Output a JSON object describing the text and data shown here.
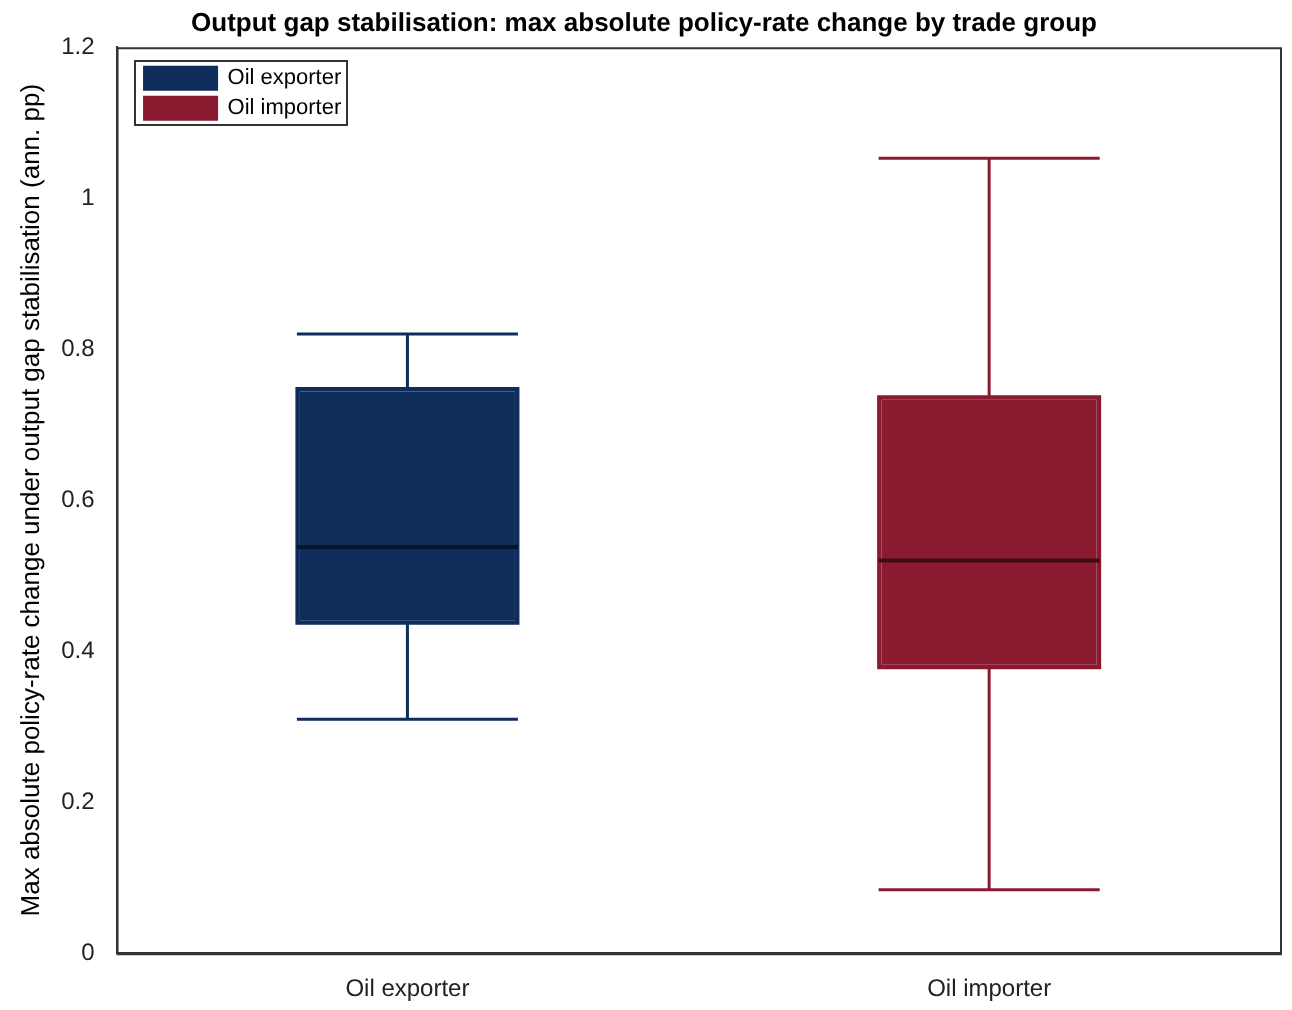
{
  "chart_data": {
    "type": "box",
    "title": "Output gap stabilisation: max absolute policy-rate change by trade group",
    "ylabel": "Max absolute policy-rate change under output gap stabilisation (ann. pp)",
    "categories": [
      "Oil exporter",
      "Oil importer"
    ],
    "series": [
      {
        "name": "Oil exporter",
        "color": "#0f2d5a",
        "boxes": [
          {
            "low": 0.31,
            "q1": 0.437,
            "median": 0.538,
            "q3": 0.748,
            "high": 0.82
          },
          null
        ]
      },
      {
        "name": "Oil importer",
        "color": "#8a1a30",
        "boxes": [
          null,
          {
            "low": 0.084,
            "q1": 0.378,
            "median": 0.52,
            "q3": 0.737,
            "high": 1.053
          }
        ]
      }
    ],
    "ylim": [
      0,
      1.2
    ],
    "yticks": [
      0,
      0.2,
      0.4,
      0.6,
      0.8,
      1,
      1.2
    ],
    "grid": false,
    "legend": "top left"
  }
}
